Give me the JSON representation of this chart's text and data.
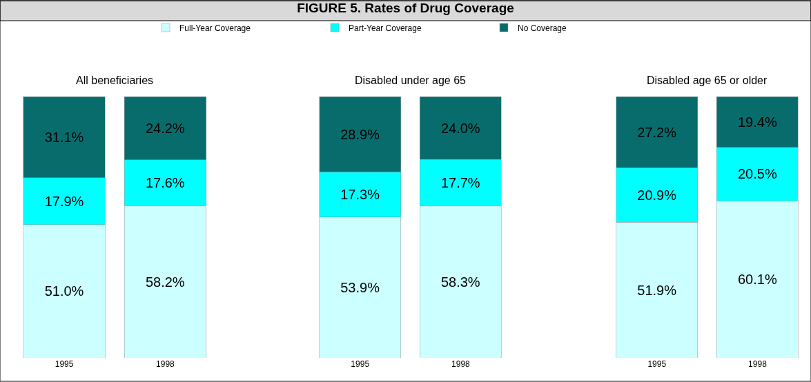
{
  "chart_data": [
    {
      "type": "other",
      "title": "FIGURE 5. Rates of Drug Coverage"
    },
    {
      "type": "bar",
      "title": "All beneficiaries",
      "stacked": true,
      "legend": "top",
      "categories": [
        "1995",
        "1998"
      ],
      "series": [
        {
          "name": "Full-Year Coverage",
          "color": "#ccffff",
          "values": [
            51.0,
            58.2
          ],
          "value_labels": [
            "51.0%",
            "58.2%"
          ]
        },
        {
          "name": "Part-Year Coverage",
          "color": "#00ffff",
          "values": [
            17.9,
            17.6
          ],
          "value_labels": [
            "17.9%",
            "17.6%"
          ]
        },
        {
          "name": "No Coverage",
          "color": "#086c6c",
          "values": [
            31.1,
            24.2
          ],
          "value_labels": [
            "31.1%",
            "24.2%"
          ]
        }
      ]
    },
    {
      "type": "bar",
      "title": "Disabled under age 65",
      "stacked": true,
      "categories": [
        "1995",
        "1998"
      ],
      "series": [
        {
          "color": "#ccffff",
          "values": [
            53.9,
            58.3
          ],
          "value_labels": [
            "53.9%",
            "58.3%"
          ]
        },
        {
          "color": "#00ffff",
          "values": [
            17.3,
            17.7
          ],
          "value_labels": [
            "17.3%",
            "17.7%"
          ]
        },
        {
          "color": "#086c6c",
          "values": [
            28.9,
            24.0
          ],
          "value_labels": [
            "28.9%",
            "24.0%"
          ]
        }
      ]
    },
    {
      "type": "bar",
      "title": "Disabled age 65 or older",
      "stacked": true,
      "categories": [
        "1995",
        "1998"
      ],
      "series": [
        {
          "color": "#ccffff",
          "values": [
            51.9,
            60.1
          ],
          "value_labels": [
            "51.9%",
            "60.1%"
          ]
        },
        {
          "color": "#00ffff",
          "values": [
            20.9,
            20.5
          ],
          "value_labels": [
            "20.9%",
            "20.5%"
          ]
        },
        {
          "color": "#086c6c",
          "values": [
            27.2,
            19.4
          ],
          "value_labels": [
            "27.2%",
            "19.4%"
          ]
        }
      ]
    }
  ]
}
